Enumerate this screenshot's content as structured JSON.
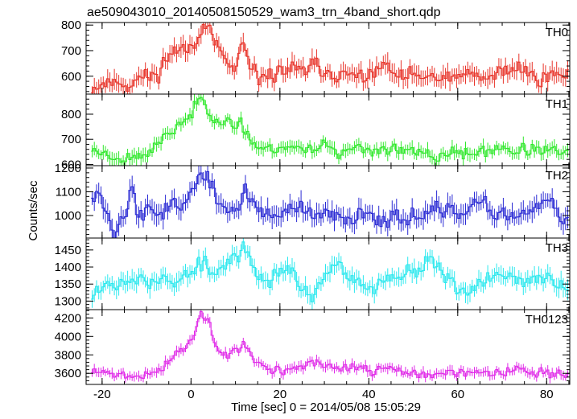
{
  "chart_data": {
    "type": "line",
    "title": "ae509043010_20140508150529_wam3_trn_4band_short.qdp",
    "xlabel": "Time [sec] 0 = 2014/05/08 15:05:29",
    "ylabel": "Counts/sec",
    "xlim": [
      -23.6,
      85.2
    ],
    "x_ticks": [
      -20,
      0,
      20,
      40,
      60,
      80
    ],
    "bin_width_sec": 0.5,
    "panels": [
      {
        "name": "TH0",
        "color": "#e8342a",
        "ylim": [
          530,
          810
        ],
        "y_ticks": [
          600,
          700,
          800
        ],
        "keyframes": [
          [
            -22,
            555
          ],
          [
            -19,
            575
          ],
          [
            -16,
            580
          ],
          [
            -14,
            560
          ],
          [
            -12,
            590
          ],
          [
            -9,
            600
          ],
          [
            -7,
            620
          ],
          [
            -5,
            690
          ],
          [
            -3,
            700
          ],
          [
            -1,
            715
          ],
          [
            1,
            745
          ],
          [
            2,
            775
          ],
          [
            3,
            800
          ],
          [
            4,
            790
          ],
          [
            5,
            720
          ],
          [
            7,
            690
          ],
          [
            8,
            650
          ],
          [
            10,
            620
          ],
          [
            11,
            690
          ],
          [
            12,
            700
          ],
          [
            13,
            640
          ],
          [
            15,
            580
          ],
          [
            17,
            610
          ],
          [
            20,
            615
          ],
          [
            23,
            630
          ],
          [
            26,
            610
          ],
          [
            27,
            650
          ],
          [
            29,
            620
          ],
          [
            32,
            610
          ],
          [
            34,
            595
          ],
          [
            38,
            600
          ],
          [
            40,
            610
          ],
          [
            42,
            625
          ],
          [
            44,
            640
          ],
          [
            47,
            590
          ],
          [
            52,
            605
          ],
          [
            55,
            580
          ],
          [
            58,
            590
          ],
          [
            61,
            610
          ],
          [
            63,
            600
          ],
          [
            66,
            580
          ],
          [
            69,
            610
          ],
          [
            72,
            630
          ],
          [
            74,
            640
          ],
          [
            76,
            610
          ],
          [
            79,
            590
          ],
          [
            82,
            610
          ],
          [
            84,
            600
          ]
        ],
        "amp": 30,
        "seed": 11
      },
      {
        "name": "TH1",
        "color": "#2ee82a",
        "ylim": [
          595,
          880
        ],
        "y_ticks": [
          600,
          700,
          800
        ],
        "keyframes": [
          [
            -22,
            660
          ],
          [
            -19,
            640
          ],
          [
            -16,
            625
          ],
          [
            -13,
            630
          ],
          [
            -10,
            645
          ],
          [
            -8,
            675
          ],
          [
            -6,
            700
          ],
          [
            -4,
            735
          ],
          [
            -2,
            770
          ],
          [
            0,
            790
          ],
          [
            1,
            840
          ],
          [
            2,
            870
          ],
          [
            3,
            860
          ],
          [
            4,
            820
          ],
          [
            5,
            790
          ],
          [
            7,
            760
          ],
          [
            9,
            750
          ],
          [
            11,
            770
          ],
          [
            12,
            740
          ],
          [
            14,
            690
          ],
          [
            16,
            660
          ],
          [
            19,
            665
          ],
          [
            22,
            670
          ],
          [
            25,
            665
          ],
          [
            28,
            660
          ],
          [
            30,
            690
          ],
          [
            33,
            650
          ],
          [
            37,
            655
          ],
          [
            41,
            660
          ],
          [
            44,
            660
          ],
          [
            47,
            650
          ],
          [
            50,
            650
          ],
          [
            53,
            640
          ],
          [
            55,
            625
          ],
          [
            59,
            650
          ],
          [
            62,
            640
          ],
          [
            66,
            650
          ],
          [
            70,
            665
          ],
          [
            73,
            650
          ],
          [
            76,
            655
          ],
          [
            80,
            660
          ],
          [
            84,
            645
          ]
        ],
        "amp": 22,
        "seed": 23
      },
      {
        "name": "TH2",
        "color": "#2a2ad4",
        "ylim": [
          905,
          1210
        ],
        "y_ticks": [
          1000,
          1100,
          1200
        ],
        "keyframes": [
          [
            -22,
            1090
          ],
          [
            -21,
            1110
          ],
          [
            -20,
            1070
          ],
          [
            -19,
            1030
          ],
          [
            -18,
            960
          ],
          [
            -17,
            930
          ],
          [
            -16,
            990
          ],
          [
            -14,
            1050
          ],
          [
            -13,
            1130
          ],
          [
            -12,
            1010
          ],
          [
            -10,
            1020
          ],
          [
            -8,
            1000
          ],
          [
            -6,
            1030
          ],
          [
            -4,
            1060
          ],
          [
            -2,
            1040
          ],
          [
            0,
            1090
          ],
          [
            1,
            1130
          ],
          [
            2,
            1190
          ],
          [
            3,
            1130
          ],
          [
            4,
            1150
          ],
          [
            5,
            1100
          ],
          [
            7,
            1040
          ],
          [
            9,
            1010
          ],
          [
            11,
            1050
          ],
          [
            12,
            1100
          ],
          [
            14,
            1040
          ],
          [
            16,
            1010
          ],
          [
            20,
            1010
          ],
          [
            24,
            1020
          ],
          [
            28,
            1000
          ],
          [
            32,
            990
          ],
          [
            36,
            1000
          ],
          [
            40,
            1010
          ],
          [
            44,
            990
          ],
          [
            48,
            1000
          ],
          [
            52,
            1000
          ],
          [
            56,
            1020
          ],
          [
            60,
            1010
          ],
          [
            64,
            1030
          ],
          [
            68,
            1020
          ],
          [
            72,
            1000
          ],
          [
            76,
            1010
          ],
          [
            80,
            1050
          ],
          [
            82,
            1020
          ],
          [
            84,
            990
          ]
        ],
        "amp": 35,
        "seed": 37
      },
      {
        "name": "TH3",
        "color": "#2ae8ee",
        "ylim": [
          1275,
          1485
        ],
        "y_ticks": [
          1300,
          1350,
          1400,
          1450
        ],
        "keyframes": [
          [
            -22,
            1330
          ],
          [
            -19,
            1350
          ],
          [
            -16,
            1370
          ],
          [
            -13,
            1350
          ],
          [
            -11,
            1380
          ],
          [
            -9,
            1350
          ],
          [
            -6,
            1370
          ],
          [
            -4,
            1340
          ],
          [
            -1,
            1380
          ],
          [
            1,
            1390
          ],
          [
            3,
            1410
          ],
          [
            5,
            1370
          ],
          [
            7,
            1400
          ],
          [
            9,
            1420
          ],
          [
            11,
            1440
          ],
          [
            12,
            1460
          ],
          [
            13,
            1420
          ],
          [
            15,
            1380
          ],
          [
            17,
            1360
          ],
          [
            19,
            1380
          ],
          [
            21,
            1400
          ],
          [
            23,
            1380
          ],
          [
            25,
            1340
          ],
          [
            27,
            1310
          ],
          [
            29,
            1340
          ],
          [
            31,
            1380
          ],
          [
            33,
            1410
          ],
          [
            36,
            1370
          ],
          [
            39,
            1350
          ],
          [
            41,
            1330
          ],
          [
            43,
            1360
          ],
          [
            45,
            1390
          ],
          [
            47,
            1370
          ],
          [
            49,
            1380
          ],
          [
            52,
            1400
          ],
          [
            54,
            1440
          ],
          [
            56,
            1380
          ],
          [
            58,
            1370
          ],
          [
            60,
            1330
          ],
          [
            63,
            1340
          ],
          [
            66,
            1350
          ],
          [
            69,
            1380
          ],
          [
            72,
            1370
          ],
          [
            75,
            1350
          ],
          [
            78,
            1370
          ],
          [
            81,
            1360
          ],
          [
            84,
            1340
          ]
        ],
        "amp": 22,
        "seed": 53
      },
      {
        "name": "TH0123",
        "color": "#e02ae8",
        "ylim": [
          3480,
          4290
        ],
        "y_ticks": [
          3600,
          3800,
          4000,
          4200
        ],
        "keyframes": [
          [
            -22,
            3610
          ],
          [
            -19,
            3600
          ],
          [
            -16,
            3580
          ],
          [
            -13,
            3570
          ],
          [
            -10,
            3590
          ],
          [
            -8,
            3600
          ],
          [
            -6,
            3680
          ],
          [
            -4,
            3780
          ],
          [
            -3,
            3880
          ],
          [
            -2,
            3800
          ],
          [
            -1,
            3880
          ],
          [
            0,
            3980
          ],
          [
            1,
            4040
          ],
          [
            2,
            4240
          ],
          [
            3,
            4220
          ],
          [
            4,
            4180
          ],
          [
            5,
            4000
          ],
          [
            6,
            3850
          ],
          [
            7,
            3780
          ],
          [
            9,
            3830
          ],
          [
            11,
            3870
          ],
          [
            12,
            3950
          ],
          [
            13,
            3850
          ],
          [
            15,
            3680
          ],
          [
            18,
            3640
          ],
          [
            22,
            3640
          ],
          [
            26,
            3680
          ],
          [
            28,
            3720
          ],
          [
            30,
            3700
          ],
          [
            33,
            3660
          ],
          [
            37,
            3660
          ],
          [
            40,
            3620
          ],
          [
            43,
            3640
          ],
          [
            46,
            3650
          ],
          [
            49,
            3600
          ],
          [
            52,
            3590
          ],
          [
            55,
            3580
          ],
          [
            58,
            3600
          ],
          [
            62,
            3590
          ],
          [
            66,
            3600
          ],
          [
            70,
            3620
          ],
          [
            73,
            3640
          ],
          [
            76,
            3620
          ],
          [
            79,
            3610
          ],
          [
            82,
            3580
          ],
          [
            84,
            3570
          ]
        ],
        "amp": 45,
        "seed": 71
      }
    ]
  }
}
